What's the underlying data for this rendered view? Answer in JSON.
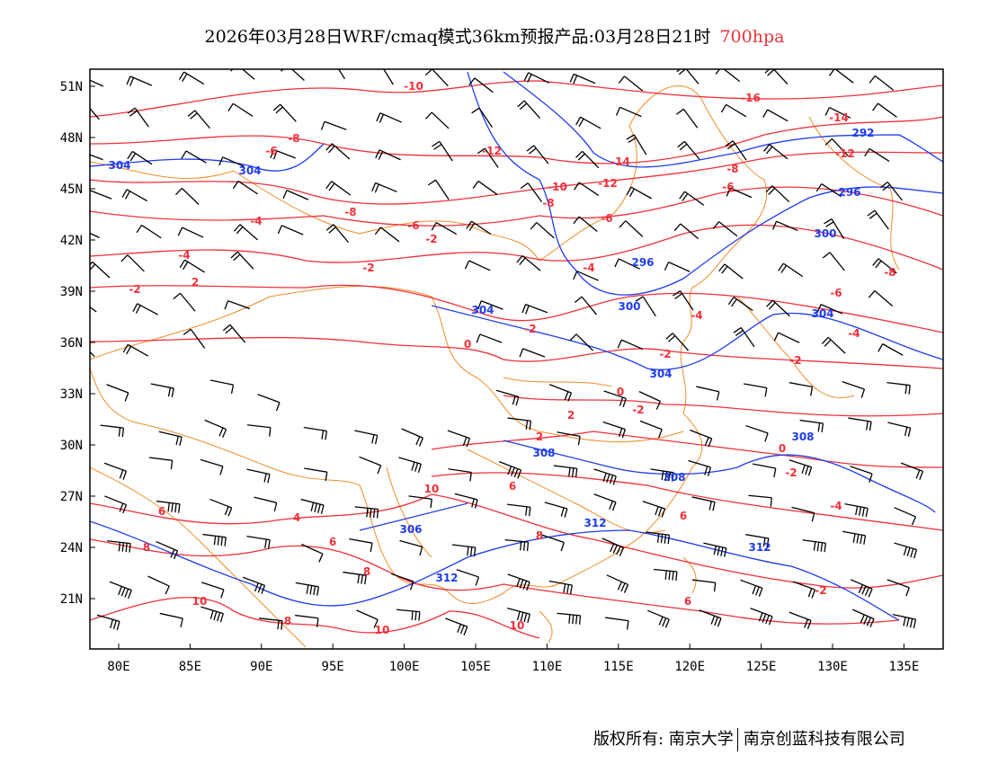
{
  "title": {
    "main": "2026年03月28日WRF/cmaq模式36km预报产品:03月28日21时",
    "level": "700hpa"
  },
  "axes": {
    "lat_labels": [
      "51N",
      "48N",
      "45N",
      "42N",
      "39N",
      "36N",
      "33N",
      "30N",
      "27N",
      "24N",
      "21N"
    ],
    "lon_labels": [
      "80E",
      "85E",
      "90E",
      "95E",
      "100E",
      "105E",
      "110E",
      "115E",
      "120E",
      "125E",
      "130E",
      "135E"
    ]
  },
  "colors": {
    "temperature": "#f0303a",
    "height": "#1e3cf0",
    "border": "#f08c28",
    "barb": "#000000"
  },
  "temperature_labels": [
    "-10",
    "-16",
    "-14",
    "-12",
    "-6",
    "-8",
    "-12",
    "-14",
    "-12",
    "-10",
    "-8",
    "-8",
    "-6",
    "-8",
    "-6",
    "-4",
    "-4",
    "-6",
    "-4",
    "-2",
    "-2",
    "0",
    "2",
    "-2",
    "-2",
    "-8",
    "-6",
    "-4",
    "-4",
    "-2",
    "0",
    "-2",
    "2",
    "-2",
    "0",
    "-2",
    "10",
    "6",
    "6",
    "4",
    "-4",
    "6",
    "6",
    "8",
    "10",
    "8",
    "10",
    "10",
    "2",
    "8",
    "8",
    "6",
    "-2"
  ],
  "height_labels": [
    "304",
    "304",
    "292",
    "296",
    "300",
    "296",
    "300",
    "304",
    "304",
    "304",
    "308",
    "308",
    "308",
    "306",
    "312",
    "312",
    "312"
  ],
  "footer": {
    "copyright": "版权所有: 南京大学",
    "company": "南京创蓝科技有限公司"
  }
}
